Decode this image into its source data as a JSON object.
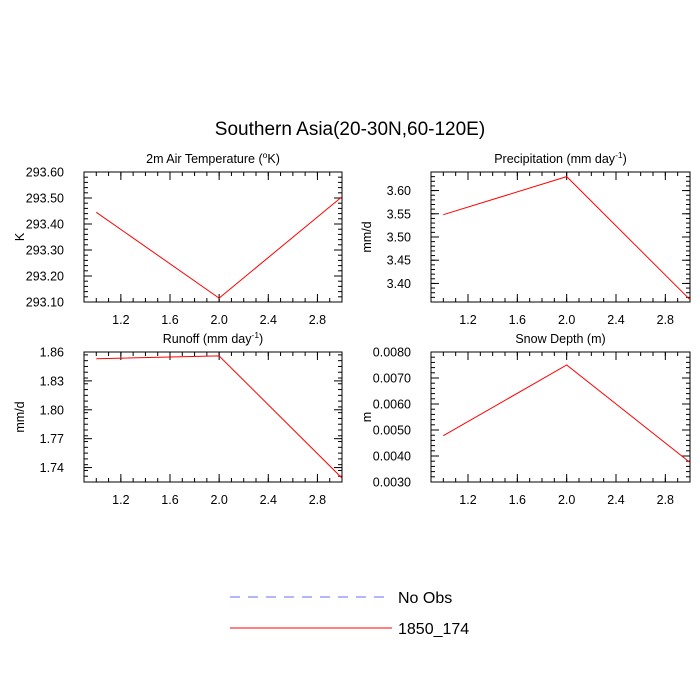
{
  "title": "Southern Asia(20-30N,60-120E)",
  "chart_data": [
    {
      "type": "line",
      "title": "2m Air Temperature (",
      "title_sup": "o",
      "title_after": "K)",
      "ylabel": "K",
      "xlim": [
        0.9,
        3.0
      ],
      "ylim": [
        293.1,
        293.6
      ],
      "xticks": [
        1.2,
        1.6,
        2.0,
        2.4,
        2.8
      ],
      "xtick_labels": [
        "1.2",
        "1.6",
        "2.0",
        "2.4",
        "2.8"
      ],
      "yticks": [
        293.1,
        293.2,
        293.3,
        293.4,
        293.5,
        293.6
      ],
      "ytick_labels": [
        "293.10",
        "293.20",
        "293.30",
        "293.40",
        "293.50",
        "293.60"
      ],
      "series": [
        {
          "name": "1850_174",
          "x": [
            1.0,
            2.0,
            3.0
          ],
          "y": [
            293.445,
            293.115,
            293.505
          ],
          "color": "#ff0000"
        }
      ]
    },
    {
      "type": "line",
      "title": "Precipitation (mm day",
      "title_sup": "-1",
      "title_after": ")",
      "ylabel": "mm/d",
      "xlim": [
        0.9,
        3.0
      ],
      "ylim": [
        3.36,
        3.64
      ],
      "xticks": [
        1.2,
        1.6,
        2.0,
        2.4,
        2.8
      ],
      "xtick_labels": [
        "1.2",
        "1.6",
        "2.0",
        "2.4",
        "2.8"
      ],
      "yticks": [
        3.4,
        3.45,
        3.5,
        3.55,
        3.6
      ],
      "ytick_labels": [
        "3.40",
        "3.45",
        "3.50",
        "3.55",
        "3.60"
      ],
      "series": [
        {
          "name": "1850_174",
          "x": [
            1.0,
            2.0,
            3.0
          ],
          "y": [
            3.548,
            3.63,
            3.365
          ],
          "color": "#ff0000"
        }
      ]
    },
    {
      "type": "line",
      "title": "Runoff (mm day",
      "title_sup": "-1",
      "title_after": ")",
      "ylabel": "mm/d",
      "xlim": [
        0.9,
        3.0
      ],
      "ylim": [
        1.725,
        1.86
      ],
      "xticks": [
        1.2,
        1.6,
        2.0,
        2.4,
        2.8
      ],
      "xtick_labels": [
        "1.2",
        "1.6",
        "2.0",
        "2.4",
        "2.8"
      ],
      "yticks": [
        1.74,
        1.77,
        1.8,
        1.83,
        1.86
      ],
      "ytick_labels": [
        "1.74",
        "1.77",
        "1.80",
        "1.83",
        "1.86"
      ],
      "series": [
        {
          "name": "1850_174",
          "x": [
            1.0,
            2.0,
            3.0
          ],
          "y": [
            1.853,
            1.856,
            1.729
          ],
          "color": "#ff0000"
        }
      ]
    },
    {
      "type": "line",
      "title": "Snow Depth (m)",
      "title_sup": "",
      "title_after": "",
      "ylabel": "m",
      "xlim": [
        0.9,
        3.0
      ],
      "ylim": [
        0.003,
        0.008
      ],
      "xticks": [
        1.2,
        1.6,
        2.0,
        2.4,
        2.8
      ],
      "xtick_labels": [
        "1.2",
        "1.6",
        "2.0",
        "2.4",
        "2.8"
      ],
      "yticks": [
        0.003,
        0.004,
        0.005,
        0.006,
        0.007,
        0.008
      ],
      "ytick_labels": [
        "0.0030",
        "0.0040",
        "0.0050",
        "0.0060",
        "0.0070",
        "0.0080"
      ],
      "series": [
        {
          "name": "1850_174",
          "x": [
            1.0,
            2.0,
            3.0
          ],
          "y": [
            0.00478,
            0.0075,
            0.00375
          ],
          "color": "#ff0000"
        }
      ]
    }
  ],
  "legend": {
    "placement": "bottom-center",
    "items": [
      {
        "label": "No Obs",
        "color": "#6a6aff",
        "dash": true
      },
      {
        "label": "1850_174",
        "color": "#ff0000",
        "dash": false
      }
    ]
  }
}
